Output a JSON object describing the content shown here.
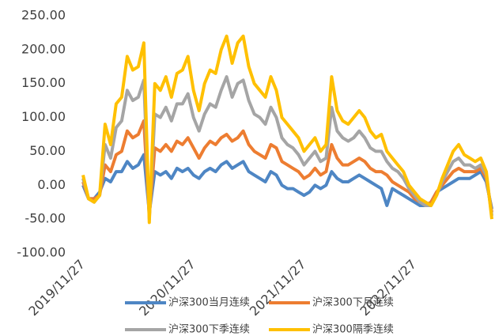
{
  "chart_data": {
    "type": "line",
    "categories": [
      "2019/11/27",
      null,
      null,
      null,
      null,
      null,
      null,
      null,
      null,
      null,
      null,
      null,
      null,
      null,
      null,
      null,
      null,
      null,
      null,
      null,
      "2020/11/27",
      null,
      null,
      null,
      null,
      null,
      null,
      null,
      null,
      null,
      null,
      null,
      null,
      null,
      null,
      null,
      null,
      null,
      null,
      null,
      "2021/11/27",
      null,
      null,
      null,
      null,
      null,
      null,
      null,
      null,
      null,
      null,
      null,
      null,
      null,
      null,
      null,
      null,
      null,
      null,
      null,
      "2022/11/27",
      null,
      null,
      null,
      null,
      null,
      null,
      null,
      null,
      null,
      null,
      null,
      null,
      null,
      null
    ],
    "ylim": [
      -100,
      250
    ],
    "yticks": [
      {
        "value": -100,
        "label": "-100.00"
      },
      {
        "value": -50,
        "label": "-50.00"
      },
      {
        "value": 0,
        "label": "0.00"
      },
      {
        "value": 50,
        "label": "50.00"
      },
      {
        "value": 100,
        "label": "100.00"
      },
      {
        "value": 150,
        "label": "150.00"
      },
      {
        "value": 200,
        "label": "200.00"
      },
      {
        "value": 250,
        "label": "250.00"
      }
    ],
    "legend": "bottom",
    "series": [
      {
        "name": "沪深300当月连续",
        "color": "#4e86c4",
        "values": [
          0,
          -20,
          -20,
          -10,
          10,
          5,
          20,
          20,
          35,
          25,
          30,
          45,
          -40,
          20,
          15,
          20,
          10,
          25,
          20,
          25,
          15,
          10,
          20,
          25,
          20,
          30,
          35,
          25,
          30,
          35,
          20,
          15,
          10,
          5,
          20,
          15,
          0,
          -5,
          -5,
          -10,
          -15,
          -10,
          0,
          -5,
          0,
          20,
          10,
          5,
          5,
          10,
          15,
          10,
          5,
          0,
          -5,
          -30,
          -5,
          -10,
          -15,
          -20,
          -25,
          -30,
          -30,
          -25,
          -10,
          -5,
          0,
          5,
          10,
          10,
          10,
          15,
          20,
          5,
          -35
        ]
      },
      {
        "name": "沪深300下月连续",
        "color": "#ed7d31",
        "values": [
          5,
          -20,
          -20,
          -15,
          30,
          20,
          45,
          50,
          80,
          70,
          75,
          95,
          -45,
          55,
          50,
          60,
          50,
          65,
          60,
          70,
          55,
          40,
          55,
          65,
          60,
          70,
          75,
          65,
          70,
          80,
          60,
          50,
          45,
          40,
          60,
          55,
          35,
          30,
          25,
          20,
          10,
          15,
          25,
          15,
          20,
          60,
          40,
          30,
          30,
          35,
          40,
          35,
          25,
          20,
          20,
          15,
          5,
          0,
          -5,
          -10,
          -20,
          -25,
          -30,
          -25,
          -10,
          0,
          10,
          20,
          25,
          20,
          20,
          20,
          25,
          10,
          -40
        ]
      },
      {
        "name": "沪深300下季连续",
        "color": "#a5a5a5",
        "values": [
          10,
          -20,
          -25,
          -15,
          60,
          40,
          85,
          95,
          140,
          125,
          130,
          155,
          -50,
          105,
          100,
          115,
          95,
          120,
          120,
          135,
          100,
          80,
          105,
          120,
          115,
          140,
          160,
          130,
          150,
          155,
          125,
          105,
          100,
          90,
          115,
          100,
          70,
          60,
          55,
          45,
          30,
          40,
          50,
          35,
          40,
          115,
          80,
          70,
          65,
          70,
          80,
          70,
          55,
          50,
          50,
          35,
          25,
          20,
          10,
          -5,
          -15,
          -25,
          -30,
          -30,
          -15,
          5,
          20,
          35,
          40,
          30,
          30,
          25,
          30,
          15,
          -45
        ]
      },
      {
        "name": "沪深300隔季连续",
        "color": "#ffc000",
        "values": [
          15,
          -20,
          -25,
          -15,
          90,
          60,
          120,
          130,
          190,
          170,
          175,
          210,
          -55,
          150,
          140,
          160,
          130,
          165,
          170,
          190,
          140,
          110,
          150,
          170,
          165,
          200,
          220,
          180,
          210,
          220,
          175,
          150,
          140,
          130,
          160,
          140,
          100,
          90,
          80,
          70,
          50,
          60,
          70,
          50,
          60,
          160,
          110,
          95,
          90,
          100,
          110,
          100,
          80,
          70,
          75,
          50,
          40,
          30,
          20,
          0,
          -10,
          -20,
          -25,
          -30,
          -15,
          10,
          30,
          50,
          60,
          45,
          40,
          35,
          40,
          20,
          -50
        ]
      }
    ]
  }
}
